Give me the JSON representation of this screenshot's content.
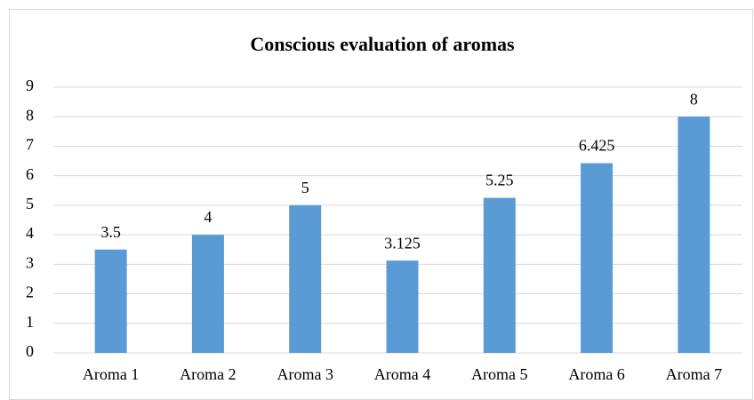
{
  "chart_data": {
    "type": "bar",
    "title": "Conscious evaluation of aromas",
    "categories": [
      "Aroma 1",
      "Aroma 2",
      "Aroma 3",
      "Aroma 4",
      "Aroma 5",
      "Aroma 6",
      "Aroma 7"
    ],
    "values": [
      3.5,
      4,
      5,
      3.125,
      5.25,
      6.425,
      8
    ],
    "color": "#5b9bd5",
    "ylim": [
      0,
      9
    ],
    "yticks": [
      0,
      1,
      2,
      3,
      4,
      5,
      6,
      7,
      8,
      9
    ],
    "grid": true
  }
}
